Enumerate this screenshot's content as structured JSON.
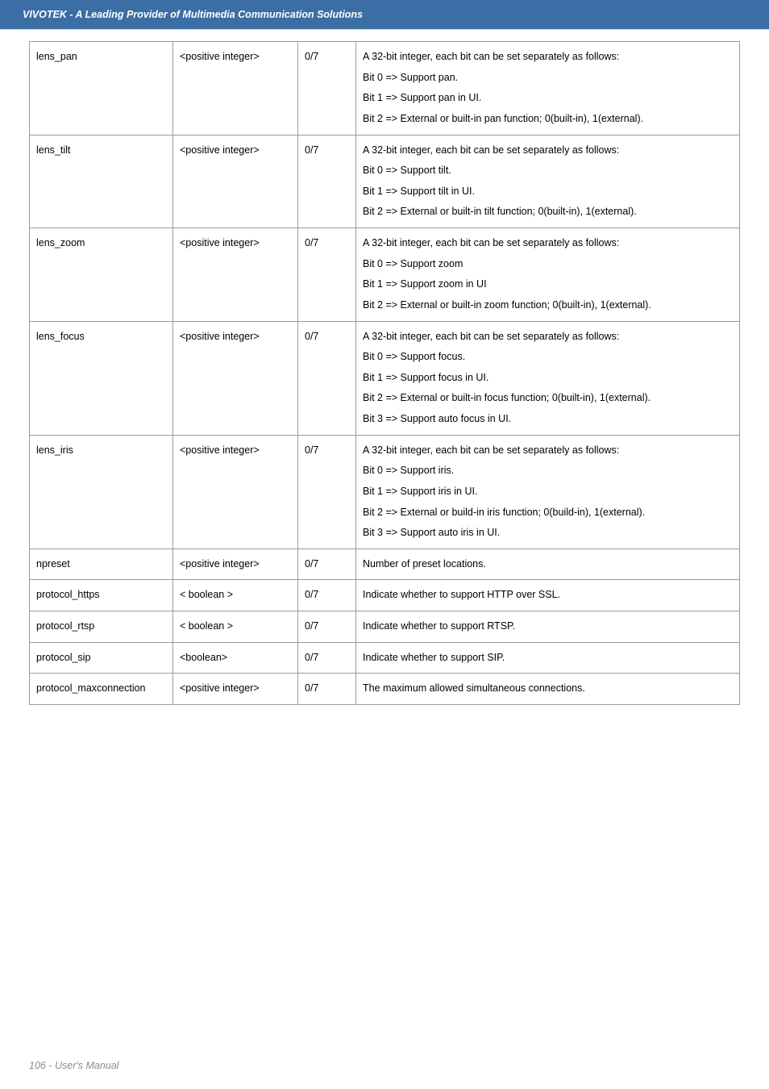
{
  "header_text": "VIVOTEK - A Leading Provider of Multimedia Communication Solutions",
  "footer_text": "106 - User's Manual",
  "colors": {
    "header_bg": "#3b6ea5",
    "header_fg": "#ffffff",
    "border": "#9a9a9a",
    "footer_fg": "#8c8c8c",
    "page_bg": "#ffffff"
  },
  "table": {
    "rows": [
      {
        "name": "lens_pan",
        "type": "<positive integer>",
        "sec": "0/7",
        "desc": "A 32-bit integer, each bit can be set separately as follows:\nBit 0 => Support pan.\nBit 1 => Support pan in UI.\nBit 2 => External or built-in pan function; 0(built-in), 1(external)."
      },
      {
        "name": "lens_tilt",
        "type": "<positive integer>",
        "sec": "0/7",
        "desc": "A 32-bit integer, each bit can be set separately as follows:\nBit 0 => Support tilt.\nBit 1 => Support tilt in UI.\nBit 2 => External or built-in tilt function; 0(built-in), 1(external)."
      },
      {
        "name": "lens_zoom",
        "type": "<positive integer>",
        "sec": "0/7",
        "desc": "A 32-bit integer, each bit can be set separately as follows:\nBit 0 => Support zoom\nBit 1 => Support zoom in UI\nBit 2 => External or built-in zoom function; 0(built-in), 1(external)."
      },
      {
        "name": "lens_focus",
        "type": "<positive integer>",
        "sec": "0/7",
        "desc": "A 32-bit integer, each bit can be set separately as follows:\nBit 0 => Support focus.\nBit 1 => Support focus in UI.\nBit 2 => External or built-in focus function; 0(built-in), 1(external).\nBit 3 => Support auto focus in UI."
      },
      {
        "name": "lens_iris",
        "type": "<positive integer>",
        "sec": "0/7",
        "desc": "A 32-bit integer, each bit can be set separately as follows:\nBit 0 => Support iris.\nBit 1 => Support iris in UI.\nBit 2 => External or build-in iris function; 0(build-in), 1(external).\nBit 3 => Support auto iris in UI."
      },
      {
        "name": "npreset",
        "type": "<positive integer>",
        "sec": "0/7",
        "desc": "Number of preset locations."
      },
      {
        "name": "protocol_https",
        "type": "< boolean >",
        "sec": "0/7",
        "desc": "Indicate whether to support HTTP over SSL."
      },
      {
        "name": "protocol_rtsp",
        "type": "< boolean >",
        "sec": "0/7",
        "desc": "Indicate whether to support RTSP."
      },
      {
        "name": "protocol_sip",
        "type": "<boolean>",
        "sec": "0/7",
        "desc": "Indicate whether to support SIP."
      },
      {
        "name": "protocol_maxconnection",
        "type": "<positive integer>",
        "sec": "0/7",
        "desc": "The maximum allowed simultaneous connections."
      }
    ]
  }
}
